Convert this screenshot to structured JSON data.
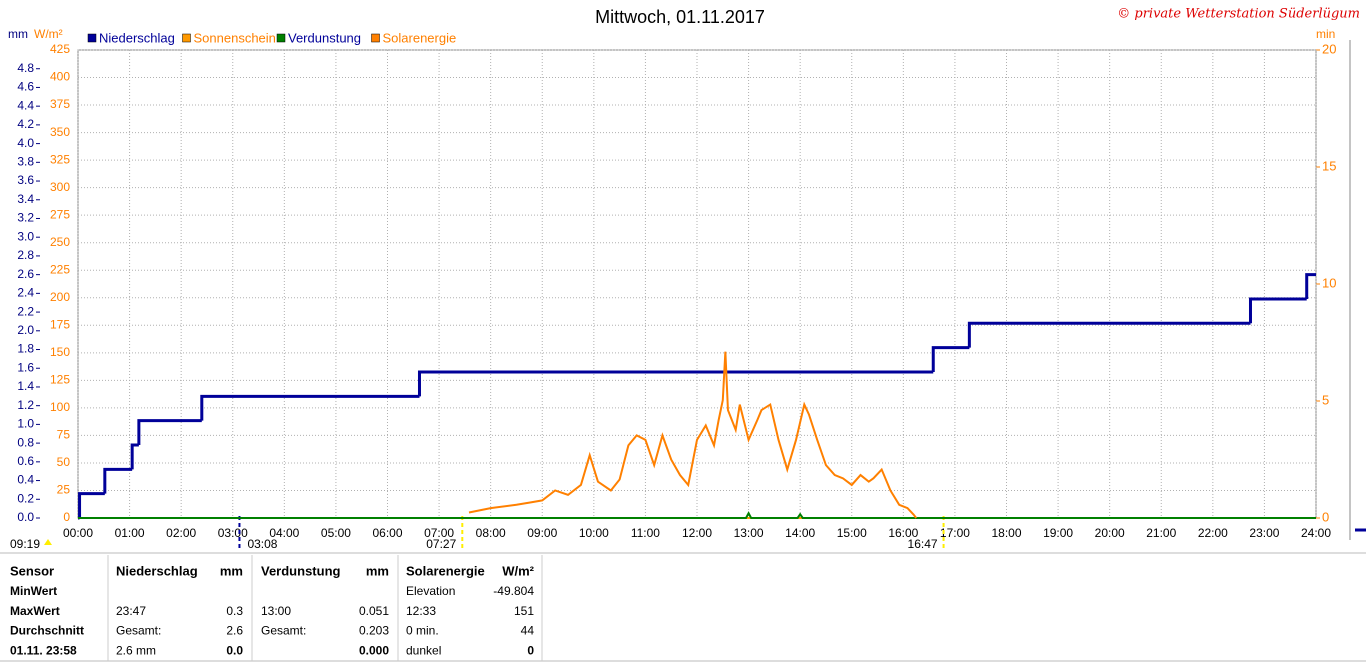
{
  "chart_data": {
    "type": "line",
    "title": "Mittwoch, 01.11.2017",
    "copyright": "© private Wetterstation Süderlügum",
    "ylabel": "mm",
    "y2label": "W/m²",
    "y3label": "min",
    "xlim": [
      0,
      24
    ],
    "xticks": [
      {
        "value": 0,
        "label": "00:00"
      },
      {
        "value": 1,
        "label": "01:00"
      },
      {
        "value": 2,
        "label": "02:00"
      },
      {
        "value": 3,
        "label": "03:00"
      },
      {
        "value": 4,
        "label": "04:00"
      },
      {
        "value": 5,
        "label": "05:00"
      },
      {
        "value": 6,
        "label": "06:00"
      },
      {
        "value": 7,
        "label": "07:00"
      },
      {
        "value": 8,
        "label": "08:00"
      },
      {
        "value": 9,
        "label": "09:00"
      },
      {
        "value": 10,
        "label": "10:00"
      },
      {
        "value": 11,
        "label": "11:00"
      },
      {
        "value": 12,
        "label": "12:00"
      },
      {
        "value": 13,
        "label": "13:00"
      },
      {
        "value": 14,
        "label": "14:00"
      },
      {
        "value": 15,
        "label": "15:00"
      },
      {
        "value": 16,
        "label": "16:00"
      },
      {
        "value": 17,
        "label": "17:00"
      },
      {
        "value": 18,
        "label": "18:00"
      },
      {
        "value": 19,
        "label": "19:00"
      },
      {
        "value": 20,
        "label": "20:00"
      },
      {
        "value": 21,
        "label": "21:00"
      },
      {
        "value": 22,
        "label": "22:00"
      },
      {
        "value": 23,
        "label": "23:00"
      },
      {
        "value": 24,
        "label": "24:00"
      }
    ],
    "ylim": [
      0,
      5
    ],
    "yticks": [
      {
        "value": 0,
        "label": "0.0"
      },
      0.2,
      0.4,
      0.6,
      0.8,
      {
        "value": 1,
        "label": "1.0"
      },
      1.2,
      1.4,
      1.6,
      1.8,
      {
        "value": 2,
        "label": "2.0"
      },
      2.2,
      2.4,
      2.6,
      2.8,
      {
        "value": 3,
        "label": "3.0"
      },
      3.2,
      3.4,
      3.6,
      3.8,
      {
        "value": 4,
        "label": "4.0"
      },
      4.2,
      4.4,
      4.6,
      4.8
    ],
    "y2lim": [
      0,
      425
    ],
    "y2ticks": [
      0,
      25,
      50,
      75,
      100,
      125,
      150,
      175,
      200,
      225,
      250,
      275,
      300,
      325,
      350,
      375,
      400,
      425
    ],
    "y3lim": [
      0,
      20
    ],
    "y3ticks": [
      0,
      5,
      10,
      15,
      20
    ],
    "grid": true,
    "series": [
      {
        "name": "Niederschlag",
        "color": "#000099",
        "style": "step",
        "axis": "y",
        "x": [
          0,
          0.03,
          0.52,
          1.05,
          1.18,
          2.4,
          6.62,
          16.58,
          17.28,
          22.73,
          23.82
        ],
        "values": [
          0,
          0.26,
          0.52,
          0.78,
          1.04,
          1.3,
          1.56,
          1.82,
          2.08,
          2.34,
          2.6
        ]
      },
      {
        "name": "Sonnenschein",
        "color": "#ff9900",
        "style": "line",
        "axis": "y3",
        "x": [
          0,
          24
        ],
        "values": [
          0,
          0
        ]
      },
      {
        "name": "Verdunstung",
        "color": "#008000",
        "style": "line",
        "axis": "y",
        "x": [
          0,
          12.95,
          13.0,
          13.05,
          13.95,
          14.0,
          14.05,
          24
        ],
        "values": [
          0,
          0,
          0.051,
          0,
          0,
          0.04,
          0,
          0
        ]
      },
      {
        "name": "Solarenergie",
        "color": "#ff8000",
        "style": "line",
        "axis": "y2",
        "x": [
          7.58,
          8.0,
          8.5,
          8.75,
          9.0,
          9.25,
          9.5,
          9.75,
          9.92,
          10.08,
          10.33,
          10.5,
          10.67,
          10.83,
          11.0,
          11.17,
          11.33,
          11.5,
          11.67,
          11.83,
          12.0,
          12.17,
          12.33,
          12.42,
          12.5,
          12.55,
          12.6,
          12.75,
          12.83,
          13.0,
          13.17,
          13.25,
          13.42,
          13.58,
          13.75,
          13.92,
          14.08,
          14.17,
          14.33,
          14.5,
          14.67,
          14.83,
          15.0,
          15.17,
          15.33,
          15.42,
          15.58,
          15.75,
          15.92,
          16.08,
          16.2,
          16.25
        ],
        "values": [
          5,
          9,
          12,
          14,
          16,
          25,
          21,
          30,
          57,
          33,
          25,
          35,
          66,
          75,
          71,
          48,
          75,
          53,
          39,
          30,
          71,
          84,
          66,
          89,
          107,
          151,
          98,
          80,
          103,
          71,
          89,
          98,
          103,
          71,
          44,
          71,
          103,
          94,
          71,
          48,
          39,
          36,
          30,
          39,
          33,
          36,
          44,
          25,
          12,
          9,
          3,
          0
        ]
      }
    ],
    "markers": [
      {
        "label": "03:08",
        "x": 3.13,
        "color": "#000099"
      },
      {
        "label": "07:27",
        "x": 7.45,
        "color": "#ffee00"
      },
      {
        "label": "16:47",
        "x": 16.78,
        "color": "#ffee00"
      }
    ],
    "left_marker": "09:19"
  },
  "table": {
    "header": [
      "Sensor",
      "Niederschlag",
      "mm",
      "Verdunstung",
      "mm",
      "Solarenergie",
      "W/m²"
    ],
    "rows": [
      [
        "MinWert",
        null,
        null,
        null,
        null,
        "Elevation",
        "-49.804"
      ],
      [
        "MaxWert",
        "23:47",
        "0.3",
        "13:00",
        "0.051",
        "12:33",
        "151"
      ],
      [
        "Durchschnitt",
        "Gesamt:",
        "2.6",
        "Gesamt:",
        "0.203",
        "0 min.",
        "44"
      ],
      [
        "01.11. 23:58",
        "2.6 mm",
        "0.0",
        null,
        "0.000",
        "dunkel",
        "0"
      ]
    ]
  }
}
